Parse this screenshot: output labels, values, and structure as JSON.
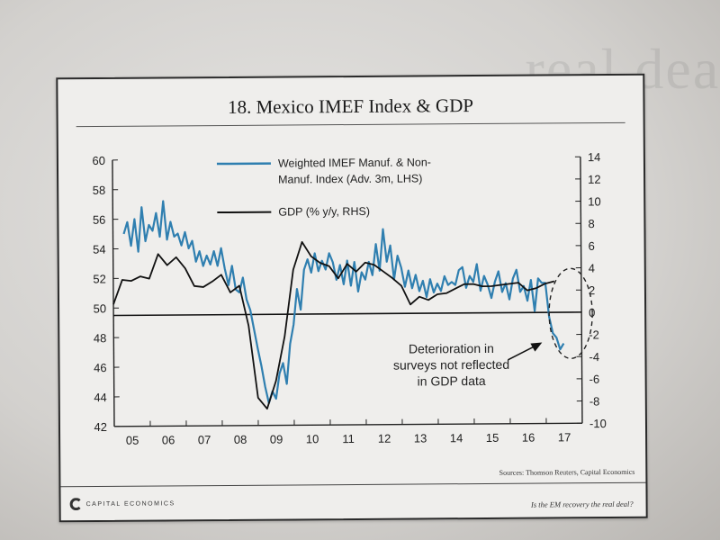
{
  "chart_data": {
    "type": "line",
    "title": "18. Mexico IMEF Index & GDP",
    "x_tick_labels": [
      "05",
      "06",
      "07",
      "08",
      "09",
      "10",
      "11",
      "12",
      "13",
      "14",
      "15",
      "16",
      "17"
    ],
    "xlim": [
      2005.0,
      2018.0
    ],
    "left_axis": {
      "ylim": [
        42,
        60
      ],
      "ticks": [
        42,
        44,
        46,
        48,
        50,
        52,
        54,
        56,
        58,
        60
      ]
    },
    "right_axis": {
      "ylim": [
        -10,
        14
      ],
      "ticks": [
        -10,
        -8,
        -6,
        -4,
        -2,
        0,
        2,
        4,
        6,
        8,
        10,
        12,
        14
      ]
    },
    "reference_line": {
      "axis": "right",
      "value": 0
    },
    "series": [
      {
        "name": "Weighted IMEF Manuf. & Non-Manuf. Index (Adv. 3m, LHS)",
        "legend_line1": "Weighted IMEF Manuf. & Non-",
        "legend_line2": "Manuf. Index (Adv. 3m, LHS)",
        "axis": "left",
        "color": "#2f7fb0",
        "x": [
          2005.3,
          2005.4,
          2005.5,
          2005.6,
          2005.7,
          2005.8,
          2005.9,
          2006.0,
          2006.1,
          2006.2,
          2006.3,
          2006.4,
          2006.5,
          2006.6,
          2006.7,
          2006.8,
          2006.9,
          2007.0,
          2007.1,
          2007.2,
          2007.3,
          2007.4,
          2007.5,
          2007.6,
          2007.7,
          2007.8,
          2007.9,
          2008.0,
          2008.1,
          2008.2,
          2008.3,
          2008.4,
          2008.5,
          2008.6,
          2008.7,
          2008.8,
          2008.9,
          2009.0,
          2009.1,
          2009.2,
          2009.3,
          2009.4,
          2009.5,
          2009.6,
          2009.7,
          2009.8,
          2009.9,
          2010.0,
          2010.1,
          2010.2,
          2010.3,
          2010.4,
          2010.5,
          2010.6,
          2010.7,
          2010.8,
          2010.9,
          2011.0,
          2011.1,
          2011.2,
          2011.3,
          2011.4,
          2011.5,
          2011.6,
          2011.7,
          2011.8,
          2011.9,
          2012.0,
          2012.1,
          2012.2,
          2012.3,
          2012.4,
          2012.5,
          2012.6,
          2012.7,
          2012.8,
          2012.9,
          2013.0,
          2013.1,
          2013.2,
          2013.3,
          2013.4,
          2013.5,
          2013.6,
          2013.7,
          2013.8,
          2013.9,
          2014.0,
          2014.1,
          2014.2,
          2014.3,
          2014.4,
          2014.5,
          2014.6,
          2014.7,
          2014.8,
          2014.9,
          2015.0,
          2015.1,
          2015.2,
          2015.3,
          2015.4,
          2015.5,
          2015.6,
          2015.7,
          2015.8,
          2015.9,
          2016.0,
          2016.1,
          2016.2,
          2016.3,
          2016.4,
          2016.5,
          2016.6,
          2016.7,
          2016.8,
          2016.9,
          2017.0,
          2017.1,
          2017.2,
          2017.3,
          2017.4,
          2017.5
        ],
        "y": [
          55.0,
          55.8,
          54.2,
          56.0,
          53.8,
          56.8,
          54.5,
          55.6,
          55.2,
          56.4,
          54.8,
          57.2,
          54.6,
          55.8,
          54.8,
          55.0,
          54.2,
          55.1,
          54.0,
          54.5,
          53.1,
          53.8,
          52.8,
          53.5,
          52.9,
          53.8,
          52.8,
          54.0,
          52.6,
          51.5,
          52.8,
          51.2,
          51.0,
          52.0,
          50.5,
          49.8,
          48.5,
          47.2,
          46.0,
          44.6,
          43.5,
          44.3,
          43.8,
          45.5,
          46.2,
          44.8,
          47.5,
          48.8,
          51.2,
          49.8,
          52.5,
          53.2,
          52.3,
          53.6,
          52.4,
          53.1,
          52.5,
          53.6,
          53.0,
          51.8,
          52.8,
          51.5,
          53.1,
          51.4,
          53.0,
          51.0,
          52.3,
          51.8,
          53.0,
          52.1,
          54.2,
          52.4,
          55.2,
          53.0,
          54.1,
          51.8,
          53.4,
          52.6,
          51.3,
          52.4,
          51.2,
          52.1,
          51.0,
          51.7,
          50.6,
          51.8,
          50.9,
          51.5,
          51.0,
          52.0,
          51.4,
          51.6,
          51.4,
          52.4,
          52.6,
          51.2,
          52.0,
          51.6,
          52.8,
          51.0,
          52.0,
          51.4,
          50.5,
          51.6,
          52.3,
          50.9,
          51.5,
          50.4,
          51.8,
          52.4,
          50.9,
          51.3,
          50.3,
          51.7,
          49.6,
          51.8,
          51.5,
          51.5,
          49.2,
          48.1,
          47.8,
          47.0,
          47.4
        ]
      },
      {
        "name": "GDP (% y/y, RHS)",
        "axis": "right",
        "color": "#111111",
        "x": [
          2005.0,
          2005.25,
          2005.5,
          2005.75,
          2006.0,
          2006.25,
          2006.5,
          2006.75,
          2007.0,
          2007.25,
          2007.5,
          2007.75,
          2008.0,
          2008.25,
          2008.5,
          2008.75,
          2009.0,
          2009.25,
          2009.5,
          2009.75,
          2010.0,
          2010.25,
          2010.5,
          2010.75,
          2011.0,
          2011.25,
          2011.5,
          2011.75,
          2012.0,
          2012.25,
          2012.5,
          2012.75,
          2013.0,
          2013.25,
          2013.5,
          2013.75,
          2014.0,
          2014.25,
          2014.5,
          2014.75,
          2015.0,
          2015.25,
          2015.5,
          2015.75,
          2016.0,
          2016.25,
          2016.5,
          2016.75,
          2017.0,
          2017.25
        ],
        "y": [
          1.0,
          3.2,
          3.1,
          3.5,
          3.3,
          5.5,
          4.5,
          5.2,
          4.2,
          2.6,
          2.5,
          3.0,
          3.6,
          2.0,
          2.6,
          -1.0,
          -7.5,
          -8.5,
          -6.0,
          -2.0,
          4.0,
          6.5,
          5.2,
          4.6,
          4.3,
          3.2,
          4.5,
          3.8,
          4.6,
          4.4,
          3.8,
          3.2,
          2.5,
          0.8,
          1.5,
          1.2,
          1.7,
          1.8,
          2.2,
          2.6,
          2.6,
          2.4,
          2.4,
          2.5,
          2.6,
          2.7,
          2.0,
          2.2,
          2.6,
          2.8
        ]
      }
    ],
    "annotation": {
      "lines": [
        "Deterioration in",
        "surveys not reflected",
        "in GDP data"
      ]
    },
    "legend": {
      "location": "top-center"
    }
  },
  "source_text": "Sources: Thomson Reuters, Capital Economics",
  "footer": {
    "logo_text": "CAPITAL ECONOMICS",
    "tagline": "Is the EM recovery the real deal?"
  },
  "background_text": "real deal"
}
